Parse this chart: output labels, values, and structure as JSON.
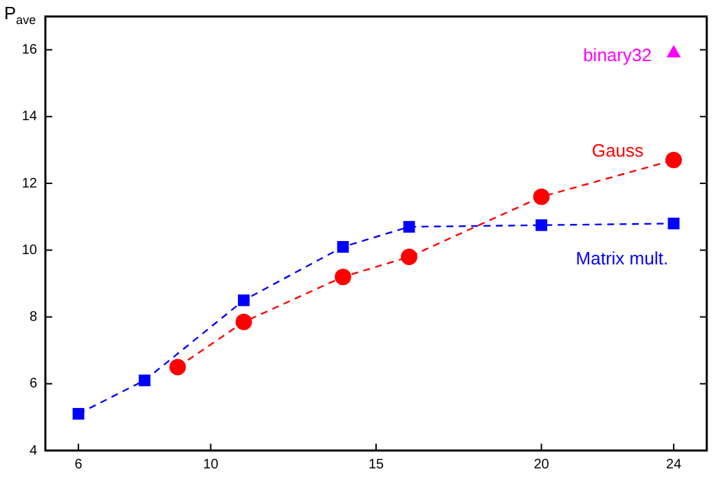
{
  "chart_data": {
    "type": "line",
    "ylabel": "P$_{ave}$",
    "xlim": [
      5,
      25
    ],
    "xticks": [
      6,
      10,
      15,
      20,
      24
    ],
    "ylim": [
      4,
      17
    ],
    "yticks": [
      4,
      6,
      8,
      10,
      12,
      14,
      16
    ],
    "grid": false,
    "legend": false,
    "series": [
      {
        "name": "Matrix mult.",
        "color": "#0000ff",
        "marker": "square",
        "line_style": "dashed",
        "x": [
          6,
          8,
          11,
          14,
          16,
          20,
          24
        ],
        "values": [
          5.1,
          6.1,
          8.5,
          10.1,
          10.7,
          10.75,
          10.8
        ]
      },
      {
        "name": "Gauss",
        "color": "#ff0000",
        "marker": "circle",
        "line_style": "dashed",
        "x": [
          9,
          11,
          14,
          16,
          20,
          24
        ],
        "values": [
          6.5,
          7.85,
          9.2,
          9.8,
          11.6,
          12.7
        ]
      },
      {
        "name": "binary32",
        "type": "scatter",
        "color": "#ff00ff",
        "marker": "triangle",
        "x": [
          24
        ],
        "values": [
          15.9
        ]
      }
    ]
  }
}
